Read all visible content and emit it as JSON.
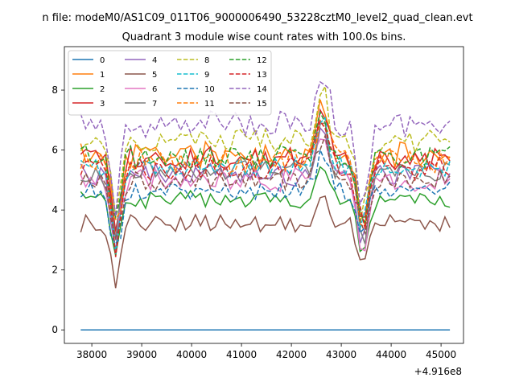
{
  "chart_data": {
    "type": "line",
    "suptitle": "n file: modeM0/AS1C09_011T06_9000006490_53228cztM0_level2_quad_clean.evt",
    "title": "Quadrant 3 module wise count rates with 100.0s bins.",
    "xlabel": "",
    "ylabel": "",
    "x_offset_label": "+4.916e8",
    "xlim": [
      37450,
      45450
    ],
    "ylim": [
      -0.45,
      9.45
    ],
    "xticks": [
      38000,
      39000,
      40000,
      41000,
      42000,
      43000,
      44000,
      45000
    ],
    "xtick_labels": [
      "38000",
      "39000",
      "40000",
      "41000",
      "42000",
      "43000",
      "44000",
      "45000"
    ],
    "yticks": [
      0,
      2,
      4,
      6,
      8
    ],
    "ytick_labels": [
      "0",
      "2",
      "4",
      "6",
      "8"
    ],
    "x_start": 37778,
    "x_step": 100,
    "legend": {
      "position": "top-left",
      "columns": 4
    },
    "series": [
      {
        "name": "0",
        "color": "#1f77b4",
        "dash": "solid",
        "constant": 0.0
      },
      {
        "name": "1",
        "color": "#ff7f0e",
        "dash": "solid",
        "base": 5.85,
        "amp": 0.45,
        "seed": 11
      },
      {
        "name": "2",
        "color": "#2ca02c",
        "dash": "solid",
        "base": 4.35,
        "amp": 0.3,
        "seed": 23
      },
      {
        "name": "3",
        "color": "#d62728",
        "dash": "solid",
        "base": 5.75,
        "amp": 0.4,
        "seed": 37
      },
      {
        "name": "4",
        "color": "#9467bd",
        "dash": "solid",
        "base": 5.15,
        "amp": 0.4,
        "seed": 41
      },
      {
        "name": "5",
        "color": "#8c564b",
        "dash": "solid",
        "base": 3.55,
        "amp": 0.3,
        "seed": 53
      },
      {
        "name": "6",
        "color": "#e377c2",
        "dash": "solid",
        "base": 5.0,
        "amp": 0.4,
        "seed": 67
      },
      {
        "name": "7",
        "color": "#7f7f7f",
        "dash": "solid",
        "base": 5.3,
        "amp": 0.35,
        "seed": 71
      },
      {
        "name": "8",
        "color": "#bcbd22",
        "dash": "dashed",
        "base": 6.3,
        "amp": 0.4,
        "seed": 83
      },
      {
        "name": "9",
        "color": "#17becf",
        "dash": "dashed",
        "base": 5.45,
        "amp": 0.35,
        "seed": 97
      },
      {
        "name": "10",
        "color": "#1f77b4",
        "dash": "dashed",
        "base": 4.65,
        "amp": 0.3,
        "seed": 101
      },
      {
        "name": "11",
        "color": "#ff7f0e",
        "dash": "dashed",
        "base": 5.65,
        "amp": 0.4,
        "seed": 113
      },
      {
        "name": "12",
        "color": "#2ca02c",
        "dash": "dashed",
        "base": 5.75,
        "amp": 0.4,
        "seed": 127
      },
      {
        "name": "13",
        "color": "#d62728",
        "dash": "dashed",
        "base": 5.4,
        "amp": 0.4,
        "seed": 131
      },
      {
        "name": "14",
        "color": "#9467bd",
        "dash": "dashed",
        "base": 6.85,
        "amp": 0.45,
        "seed": 139
      },
      {
        "name": "15",
        "color": "#8c564b",
        "dash": "dashed",
        "base": 5.0,
        "amp": 0.35,
        "seed": 149
      }
    ]
  }
}
